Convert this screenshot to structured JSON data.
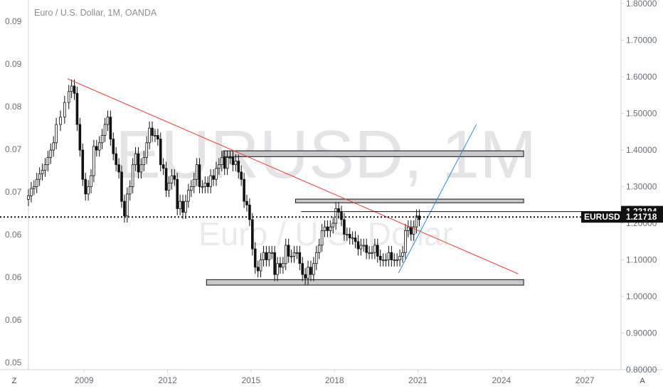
{
  "chart_data": {
    "type": "candlestick",
    "title": "Euro / U.S. Dollar, 1M, OANDA",
    "watermark": {
      "symbol": "EURUSD, 1M",
      "description": "Euro / U.S. Dollar"
    },
    "x_axis": {
      "labels": [
        "2009",
        "2012",
        "2015",
        "2018",
        "2021",
        "2024",
        "2027"
      ],
      "range": [
        2007.0,
        2028.3
      ]
    },
    "y_axis_right": {
      "labels": [
        "1.80000",
        "1.70000",
        "1.60000",
        "1.50000",
        "1.40000",
        "1.30000",
        "1.20000",
        "1.10000",
        "1.00000",
        "0.90000",
        "0.80000"
      ],
      "range": [
        0.8,
        1.81
      ]
    },
    "y_axis_left": {
      "labels": [
        "0.09",
        "0.09",
        "0.08",
        "0.07",
        "0.07",
        "0.06",
        "0.06",
        "0.06",
        "0.05",
        "0.05"
      ]
    },
    "price_tags": [
      {
        "name": "",
        "value": "1.23194",
        "style": "outline"
      },
      {
        "name": "EURUSD",
        "value": "1.21718",
        "style": "filled"
      }
    ],
    "current_price": 1.21718,
    "recent_high_line": 1.23194,
    "candles_sampled": [
      [
        2007.0,
        1.275
      ],
      [
        2007.1,
        1.295
      ],
      [
        2007.2,
        1.3
      ],
      [
        2007.3,
        1.32
      ],
      [
        2007.4,
        1.335
      ],
      [
        2007.5,
        1.345
      ],
      [
        2007.6,
        1.36
      ],
      [
        2007.7,
        1.38
      ],
      [
        2007.8,
        1.4
      ],
      [
        2007.9,
        1.42
      ],
      [
        2008.0,
        1.47
      ],
      [
        2008.15,
        1.49
      ],
      [
        2008.3,
        1.53
      ],
      [
        2008.45,
        1.56
      ],
      [
        2008.55,
        1.575
      ],
      [
        2008.65,
        1.555
      ],
      [
        2008.75,
        1.47
      ],
      [
        2008.85,
        1.4
      ],
      [
        2008.95,
        1.32
      ],
      [
        2009.05,
        1.28
      ],
      [
        2009.15,
        1.3
      ],
      [
        2009.25,
        1.33
      ],
      [
        2009.35,
        1.41
      ],
      [
        2009.45,
        1.4
      ],
      [
        2009.55,
        1.42
      ],
      [
        2009.65,
        1.44
      ],
      [
        2009.75,
        1.47
      ],
      [
        2009.85,
        1.49
      ],
      [
        2009.95,
        1.43
      ],
      [
        2010.05,
        1.39
      ],
      [
        2010.15,
        1.36
      ],
      [
        2010.25,
        1.34
      ],
      [
        2010.35,
        1.26
      ],
      [
        2010.45,
        1.22
      ],
      [
        2010.55,
        1.28
      ],
      [
        2010.65,
        1.3
      ],
      [
        2010.75,
        1.36
      ],
      [
        2010.85,
        1.39
      ],
      [
        2010.95,
        1.34
      ],
      [
        2011.05,
        1.36
      ],
      [
        2011.15,
        1.38
      ],
      [
        2011.25,
        1.42
      ],
      [
        2011.35,
        1.46
      ],
      [
        2011.45,
        1.44
      ],
      [
        2011.55,
        1.44
      ],
      [
        2011.65,
        1.43
      ],
      [
        2011.75,
        1.36
      ],
      [
        2011.85,
        1.35
      ],
      [
        2011.95,
        1.29
      ],
      [
        2012.05,
        1.31
      ],
      [
        2012.15,
        1.33
      ],
      [
        2012.25,
        1.32
      ],
      [
        2012.35,
        1.24
      ],
      [
        2012.45,
        1.26
      ],
      [
        2012.55,
        1.23
      ],
      [
        2012.65,
        1.26
      ],
      [
        2012.75,
        1.29
      ],
      [
        2012.85,
        1.3
      ],
      [
        2012.95,
        1.32
      ],
      [
        2013.05,
        1.36
      ],
      [
        2013.15,
        1.3
      ],
      [
        2013.25,
        1.3
      ],
      [
        2013.35,
        1.31
      ],
      [
        2013.45,
        1.3
      ],
      [
        2013.55,
        1.33
      ],
      [
        2013.65,
        1.32
      ],
      [
        2013.75,
        1.35
      ],
      [
        2013.85,
        1.36
      ],
      [
        2013.95,
        1.38
      ],
      [
        2014.05,
        1.35
      ],
      [
        2014.15,
        1.38
      ],
      [
        2014.25,
        1.38
      ],
      [
        2014.35,
        1.36
      ],
      [
        2014.45,
        1.37
      ],
      [
        2014.55,
        1.34
      ],
      [
        2014.65,
        1.32
      ],
      [
        2014.75,
        1.26
      ],
      [
        2014.85,
        1.25
      ],
      [
        2014.95,
        1.21
      ],
      [
        2015.05,
        1.13
      ],
      [
        2015.15,
        1.08
      ],
      [
        2015.25,
        1.07
      ],
      [
        2015.35,
        1.1
      ],
      [
        2015.45,
        1.12
      ],
      [
        2015.55,
        1.1
      ],
      [
        2015.65,
        1.12
      ],
      [
        2015.75,
        1.12
      ],
      [
        2015.85,
        1.06
      ],
      [
        2015.95,
        1.09
      ],
      [
        2016.05,
        1.08
      ],
      [
        2016.15,
        1.09
      ],
      [
        2016.25,
        1.14
      ],
      [
        2016.35,
        1.11
      ],
      [
        2016.45,
        1.11
      ],
      [
        2016.55,
        1.12
      ],
      [
        2016.65,
        1.12
      ],
      [
        2016.75,
        1.09
      ],
      [
        2016.85,
        1.06
      ],
      [
        2016.95,
        1.05
      ],
      [
        2017.05,
        1.08
      ],
      [
        2017.15,
        1.06
      ],
      [
        2017.25,
        1.09
      ],
      [
        2017.35,
        1.12
      ],
      [
        2017.45,
        1.14
      ],
      [
        2017.55,
        1.18
      ],
      [
        2017.65,
        1.19
      ],
      [
        2017.75,
        1.18
      ],
      [
        2017.85,
        1.19
      ],
      [
        2017.95,
        1.2
      ],
      [
        2018.05,
        1.24
      ],
      [
        2018.15,
        1.23
      ],
      [
        2018.25,
        1.21
      ],
      [
        2018.35,
        1.17
      ],
      [
        2018.45,
        1.17
      ],
      [
        2018.55,
        1.16
      ],
      [
        2018.65,
        1.16
      ],
      [
        2018.75,
        1.15
      ],
      [
        2018.85,
        1.13
      ],
      [
        2018.95,
        1.14
      ],
      [
        2019.05,
        1.14
      ],
      [
        2019.15,
        1.12
      ],
      [
        2019.25,
        1.12
      ],
      [
        2019.35,
        1.12
      ],
      [
        2019.45,
        1.14
      ],
      [
        2019.55,
        1.11
      ],
      [
        2019.65,
        1.1
      ],
      [
        2019.75,
        1.1
      ],
      [
        2019.85,
        1.1
      ],
      [
        2019.95,
        1.12
      ],
      [
        2020.05,
        1.1
      ],
      [
        2020.15,
        1.1
      ],
      [
        2020.25,
        1.1
      ],
      [
        2020.35,
        1.11
      ],
      [
        2020.45,
        1.12
      ],
      [
        2020.55,
        1.18
      ],
      [
        2020.65,
        1.19
      ],
      [
        2020.75,
        1.17
      ],
      [
        2020.85,
        1.19
      ],
      [
        2020.95,
        1.22
      ],
      [
        2021.05,
        1.21
      ]
    ],
    "drawings": {
      "red_trendline": {
        "from": [
          2008.4,
          1.595
        ],
        "to": [
          2024.6,
          1.062
        ]
      },
      "blue_trendline": {
        "from": [
          2020.3,
          1.064
        ],
        "to": [
          2023.1,
          1.47
        ]
      },
      "zones": [
        {
          "x": [
            2014.0,
            2024.8
          ],
          "y": [
            1.382,
            1.398
          ]
        },
        {
          "x": [
            2016.6,
            2024.8
          ],
          "y": [
            1.256,
            1.266
          ]
        },
        {
          "x": [
            2013.4,
            2024.8
          ],
          "y": [
            1.031,
            1.046
          ]
        }
      ]
    },
    "grid": false,
    "corner_labels": {
      "left": "Z",
      "right": "A"
    }
  }
}
